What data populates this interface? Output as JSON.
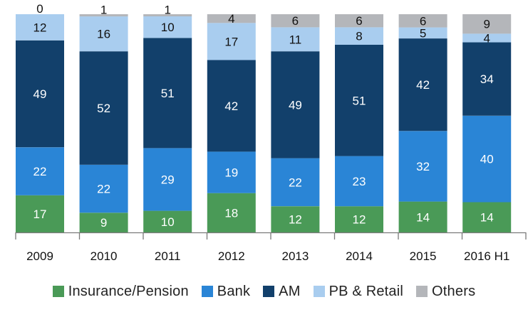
{
  "chart_data": {
    "type": "bar",
    "stacked": true,
    "normalized_percent": true,
    "categories": [
      "2009",
      "2010",
      "2011",
      "2012",
      "2013",
      "2014",
      "2015",
      "2016 H1"
    ],
    "series": [
      {
        "name": "Insurance/Pension",
        "color": "#4a9a57",
        "label_color": "#ffffff",
        "values": [
          17,
          9,
          10,
          18,
          12,
          12,
          14,
          14
        ]
      },
      {
        "name": "Bank",
        "color": "#2a85d6",
        "label_color": "#ffffff",
        "values": [
          22,
          22,
          29,
          19,
          22,
          23,
          32,
          40
        ]
      },
      {
        "name": "AM",
        "color": "#12406b",
        "label_color": "#ffffff",
        "values": [
          49,
          52,
          51,
          42,
          49,
          51,
          42,
          34
        ]
      },
      {
        "name": "PB & Retail",
        "color": "#a9cdef",
        "label_color": "#111111",
        "values": [
          12,
          16,
          10,
          17,
          11,
          8,
          5,
          4
        ]
      },
      {
        "name": "Others",
        "color": "#b4b6ba",
        "label_color": "#111111",
        "values": [
          0,
          1,
          1,
          4,
          6,
          6,
          6,
          9
        ]
      }
    ],
    "title": "",
    "xlabel": "",
    "ylabel": "",
    "ylim": [
      0,
      100
    ],
    "grid": false,
    "legend_position": "bottom"
  }
}
